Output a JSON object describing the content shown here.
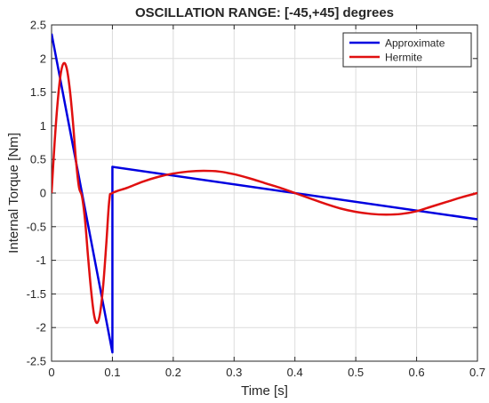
{
  "chart_data": {
    "type": "line",
    "title": "OSCILLATION RANGE: [-45,+45] degrees",
    "xlabel": "Time [s]",
    "ylabel": "Internal Torque [Nm]",
    "xlim": [
      0,
      0.7
    ],
    "ylim": [
      -2.5,
      2.5
    ],
    "xticks": [
      0,
      0.1,
      0.2,
      0.3,
      0.4,
      0.5,
      0.6,
      0.7
    ],
    "xtick_labels": [
      "0",
      "0.1",
      "0.2",
      "0.3",
      "0.4",
      "0.5",
      "0.6",
      "0.7"
    ],
    "yticks": [
      -2.5,
      -2,
      -1.5,
      -1,
      -0.5,
      0,
      0.5,
      1,
      1.5,
      2,
      2.5
    ],
    "ytick_labels": [
      "-2.5",
      "-2",
      "-1.5",
      "-1",
      "-0.5",
      "0",
      "0.5",
      "1",
      "1.5",
      "2",
      "2.5"
    ],
    "grid": true,
    "legend_position": "top-right",
    "series": [
      {
        "name": "Approximate",
        "color": "#0000e0",
        "x": [
          0,
          0.1,
          0.1,
          0.1,
          0.7
        ],
        "y": [
          2.37,
          -2.37,
          -2.37,
          0.39,
          -0.39
        ]
      },
      {
        "name": "Hermite",
        "color": "#e01010",
        "x": [
          0,
          0.005,
          0.01,
          0.015,
          0.02,
          0.025,
          0.03,
          0.035,
          0.04,
          0.045,
          0.05,
          0.055,
          0.06,
          0.065,
          0.07,
          0.075,
          0.08,
          0.085,
          0.09,
          0.095,
          0.1,
          0.125,
          0.15,
          0.175,
          0.2,
          0.225,
          0.25,
          0.275,
          0.3,
          0.325,
          0.35,
          0.375,
          0.4,
          0.425,
          0.45,
          0.475,
          0.5,
          0.525,
          0.55,
          0.575,
          0.6,
          0.625,
          0.65,
          0.675,
          0.7
        ],
        "y": [
          0,
          0.75,
          1.35,
          1.77,
          1.93,
          1.85,
          1.54,
          1.07,
          0.5,
          0.09,
          -0.05,
          -0.4,
          -0.95,
          -1.45,
          -1.82,
          -1.93,
          -1.77,
          -1.36,
          -0.75,
          -0.1,
          0,
          0.08,
          0.17,
          0.24,
          0.29,
          0.32,
          0.33,
          0.32,
          0.28,
          0.22,
          0.15,
          0.08,
          0,
          -0.08,
          -0.16,
          -0.23,
          -0.28,
          -0.31,
          -0.32,
          -0.31,
          -0.27,
          -0.2,
          -0.13,
          -0.06,
          0
        ]
      }
    ]
  }
}
